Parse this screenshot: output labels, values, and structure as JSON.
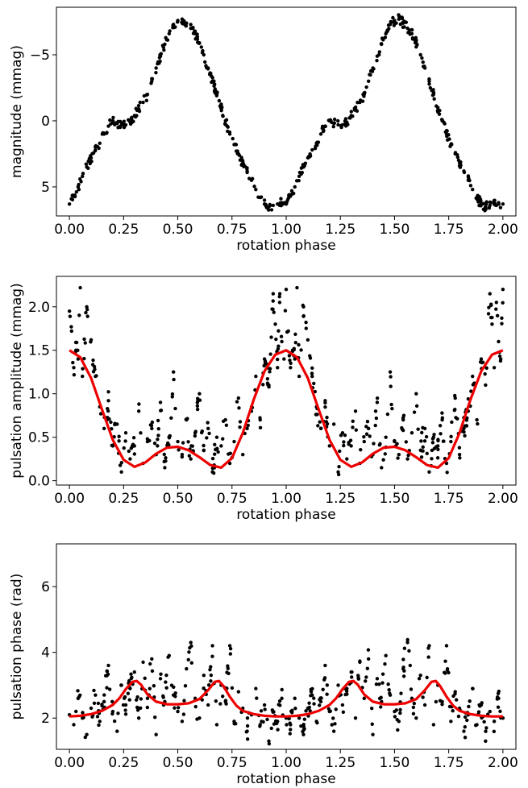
{
  "chart_data": [
    {
      "type": "scatter",
      "xlabel": "rotation phase",
      "ylabel": "magnitude (mmag)",
      "xlim": [
        -0.06,
        2.06
      ],
      "ylim": [
        7.2,
        -8.6
      ],
      "inverted_y": true,
      "x_ticks": [
        "0.00",
        "0.25",
        "0.50",
        "0.75",
        "1.00",
        "1.25",
        "1.50",
        "1.75",
        "2.00"
      ],
      "y_ticks": [
        "−5",
        "0",
        "5"
      ],
      "y_tick_values": [
        -5,
        0,
        5
      ],
      "series": [
        {
          "kind": "points",
          "x": [
            0.0,
            0.02,
            0.04,
            0.06,
            0.08,
            0.1,
            0.12,
            0.14,
            0.16,
            0.18,
            0.2,
            0.22,
            0.24,
            0.26,
            0.28,
            0.3,
            0.32,
            0.34,
            0.36,
            0.38,
            0.4,
            0.42,
            0.44,
            0.46,
            0.48,
            0.5,
            0.52,
            0.54,
            0.56,
            0.58,
            0.6,
            0.62,
            0.64,
            0.66,
            0.68,
            0.7,
            0.72,
            0.74,
            0.76,
            0.78,
            0.8,
            0.82,
            0.84,
            0.86,
            0.88,
            0.9,
            0.92,
            0.94,
            0.96,
            0.98,
            1.0
          ],
          "y": [
            6.3,
            5.7,
            5.0,
            4.2,
            3.5,
            2.8,
            2.2,
            1.7,
            1.0,
            0.4,
            0.0,
            0.2,
            0.3,
            0.3,
            0.1,
            -0.4,
            -0.9,
            -1.4,
            -2.0,
            -3.0,
            -4.0,
            -4.9,
            -5.8,
            -6.6,
            -7.3,
            -7.6,
            -7.7,
            -7.4,
            -7.0,
            -6.6,
            -5.9,
            -5.0,
            -4.0,
            -3.0,
            -2.0,
            -1.0,
            0.0,
            1.0,
            1.8,
            2.5,
            3.2,
            3.8,
            4.5,
            5.2,
            5.8,
            6.3,
            6.5,
            6.4,
            6.3,
            6.2,
            6.3
          ]
        }
      ]
    },
    {
      "type": "scatter",
      "xlabel": "rotation phase",
      "ylabel": "pulsation amplitude (mmag)",
      "xlim": [
        -0.06,
        2.06
      ],
      "ylim": [
        -0.05,
        2.35
      ],
      "x_ticks": [
        "0.00",
        "0.25",
        "0.50",
        "0.75",
        "1.00",
        "1.25",
        "1.50",
        "1.75",
        "2.00"
      ],
      "y_ticks": [
        "0.0",
        "0.5",
        "1.0",
        "1.5",
        "2.0"
      ],
      "y_tick_values": [
        0.0,
        0.5,
        1.0,
        1.5,
        2.0
      ],
      "series": [
        {
          "kind": "points",
          "x": [
            0.0,
            0.01,
            0.02,
            0.03,
            0.04,
            0.05,
            0.06,
            0.08,
            0.1,
            0.12,
            0.14,
            0.16,
            0.18,
            0.2,
            0.22,
            0.24,
            0.26,
            0.28,
            0.3,
            0.32,
            0.34,
            0.36,
            0.38,
            0.4,
            0.42,
            0.44,
            0.46,
            0.48,
            0.5,
            0.52,
            0.54,
            0.56,
            0.58,
            0.6,
            0.62,
            0.64,
            0.66,
            0.68,
            0.7,
            0.72,
            0.74,
            0.76,
            0.78,
            0.8,
            0.82,
            0.84,
            0.86,
            0.88,
            0.9,
            0.92,
            0.94,
            0.95,
            0.96,
            0.97,
            0.98,
            0.99,
            1.0
          ],
          "y": [
            1.95,
            1.72,
            1.3,
            1.5,
            1.4,
            2.22,
            1.2,
            2.0,
            1.62,
            1.2,
            0.85,
            0.6,
            0.92,
            0.4,
            0.65,
            0.1,
            0.55,
            0.25,
            0.4,
            0.8,
            0.2,
            0.45,
            0.6,
            0.3,
            0.9,
            0.15,
            0.5,
            1.25,
            0.45,
            0.3,
            0.7,
            0.25,
            0.55,
            1.0,
            0.35,
            0.6,
            0.1,
            0.5,
            0.4,
            0.7,
            0.2,
            0.45,
            0.95,
            0.3,
            0.6,
            0.8,
            1.2,
            0.7,
            1.4,
            1.1,
            2.15,
            1.8,
            1.3,
            2.05,
            1.6,
            1.4,
            2.2
          ]
        },
        {
          "kind": "fit",
          "color": "#ee0000",
          "x": [
            0.0,
            0.05,
            0.1,
            0.15,
            0.2,
            0.25,
            0.3,
            0.35,
            0.4,
            0.45,
            0.5,
            0.55,
            0.6,
            0.65,
            0.7,
            0.75,
            0.8,
            0.85,
            0.9,
            0.95,
            1.0
          ],
          "y": [
            1.5,
            1.42,
            1.18,
            0.82,
            0.47,
            0.24,
            0.16,
            0.21,
            0.31,
            0.38,
            0.39,
            0.35,
            0.27,
            0.18,
            0.15,
            0.26,
            0.55,
            0.93,
            1.26,
            1.45,
            1.5
          ]
        }
      ]
    },
    {
      "type": "scatter",
      "xlabel": "rotation phase",
      "ylabel": "pulsation phase (rad)",
      "xlim": [
        -0.06,
        2.06
      ],
      "ylim": [
        1.05,
        7.3
      ],
      "x_ticks": [
        "0.00",
        "0.25",
        "0.50",
        "0.75",
        "1.00",
        "1.25",
        "1.50",
        "1.75",
        "2.00"
      ],
      "y_ticks": [
        "2",
        "4",
        "6"
      ],
      "y_tick_values": [
        2,
        4,
        6
      ],
      "series": [
        {
          "kind": "points",
          "x": [
            0.0,
            0.02,
            0.04,
            0.06,
            0.08,
            0.1,
            0.12,
            0.14,
            0.16,
            0.18,
            0.2,
            0.22,
            0.24,
            0.26,
            0.28,
            0.3,
            0.32,
            0.34,
            0.36,
            0.38,
            0.4,
            0.42,
            0.44,
            0.46,
            0.48,
            0.5,
            0.52,
            0.54,
            0.56,
            0.58,
            0.6,
            0.62,
            0.64,
            0.66,
            0.68,
            0.7,
            0.72,
            0.74,
            0.76,
            0.78,
            0.8,
            0.82,
            0.84,
            0.86,
            0.88,
            0.9,
            0.92,
            0.94,
            0.96,
            0.98,
            1.0
          ],
          "y": [
            2.1,
            1.8,
            2.6,
            2.0,
            1.5,
            2.3,
            2.7,
            1.9,
            2.5,
            3.6,
            2.2,
            1.6,
            3.0,
            2.4,
            2.9,
            3.4,
            2.0,
            3.7,
            2.6,
            3.8,
            1.5,
            3.2,
            2.5,
            3.9,
            2.7,
            2.2,
            1.9,
            3.5,
            4.3,
            2.6,
            2.0,
            3.3,
            2.4,
            4.2,
            1.8,
            3.0,
            2.5,
            4.2,
            1.9,
            2.8,
            2.3,
            1.6,
            2.1,
            2.9,
            1.8,
            2.4,
            1.3,
            2.2,
            1.9,
            2.6,
            2.0
          ]
        },
        {
          "kind": "fit",
          "color": "#ee0000",
          "x": [
            0.0,
            0.05,
            0.1,
            0.15,
            0.2,
            0.23,
            0.26,
            0.29,
            0.31,
            0.33,
            0.36,
            0.4,
            0.45,
            0.5,
            0.55,
            0.6,
            0.64,
            0.67,
            0.69,
            0.71,
            0.74,
            0.77,
            0.8,
            0.85,
            0.9,
            0.95,
            1.0
          ],
          "y": [
            2.05,
            2.07,
            2.12,
            2.22,
            2.4,
            2.6,
            2.88,
            3.1,
            3.13,
            3.02,
            2.72,
            2.5,
            2.42,
            2.42,
            2.45,
            2.58,
            2.85,
            3.1,
            3.13,
            2.98,
            2.65,
            2.38,
            2.22,
            2.12,
            2.07,
            2.05,
            2.05
          ]
        }
      ]
    }
  ]
}
